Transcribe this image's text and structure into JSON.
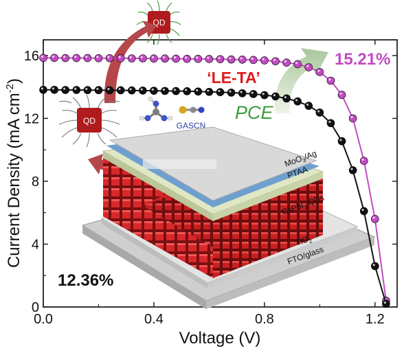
{
  "chart_data": {
    "type": "line",
    "xlabel": "Voltage (V)",
    "ylabel_prefix": "Current Density (mA cm",
    "ylabel_sup": "-2",
    "ylabel_suffix": ")",
    "xlim": [
      0.0,
      1.28
    ],
    "ylim": [
      0,
      17
    ],
    "xticks": [
      0.0,
      0.4,
      0.8,
      1.2
    ],
    "xtick_labels": [
      "0.0",
      "0.4",
      "0.8",
      "1.2"
    ],
    "yticks": [
      0,
      4,
      8,
      12,
      16
    ],
    "ytick_labels": [
      "0",
      "4",
      "8",
      "12",
      "16"
    ],
    "grid": false,
    "series": [
      {
        "color": "#c24bc2",
        "annotation": "15.21%",
        "x": [
          0.0,
          0.04,
          0.08,
          0.12,
          0.16,
          0.2,
          0.24,
          0.28,
          0.32,
          0.36,
          0.4,
          0.44,
          0.48,
          0.52,
          0.56,
          0.6,
          0.64,
          0.68,
          0.72,
          0.76,
          0.8,
          0.84,
          0.88,
          0.92,
          0.96,
          1.0,
          1.04,
          1.08,
          1.12,
          1.16,
          1.2,
          1.24
        ],
        "y": [
          15.85,
          15.85,
          15.84,
          15.84,
          15.84,
          15.83,
          15.83,
          15.83,
          15.82,
          15.82,
          15.81,
          15.81,
          15.8,
          15.79,
          15.79,
          15.78,
          15.77,
          15.75,
          15.74,
          15.72,
          15.69,
          15.64,
          15.55,
          15.45,
          15.25,
          14.95,
          14.4,
          13.5,
          12.0,
          9.3,
          5.6,
          0.4
        ]
      },
      {
        "color": "#111111",
        "annotation": "12.36%",
        "x": [
          0.0,
          0.04,
          0.08,
          0.12,
          0.16,
          0.2,
          0.24,
          0.28,
          0.32,
          0.36,
          0.4,
          0.44,
          0.48,
          0.52,
          0.56,
          0.6,
          0.64,
          0.68,
          0.72,
          0.76,
          0.8,
          0.84,
          0.88,
          0.92,
          0.96,
          1.0,
          1.04,
          1.08,
          1.12,
          1.16,
          1.2,
          1.24
        ],
        "y": [
          13.82,
          13.82,
          13.81,
          13.81,
          13.8,
          13.8,
          13.79,
          13.79,
          13.78,
          13.77,
          13.76,
          13.75,
          13.74,
          13.73,
          13.71,
          13.69,
          13.67,
          13.64,
          13.6,
          13.55,
          13.48,
          13.4,
          13.27,
          13.08,
          12.8,
          12.37,
          11.7,
          10.55,
          8.7,
          6.1,
          2.6,
          0.2
        ]
      }
    ]
  },
  "annotations": {
    "le_ta": "‘LE-TA’",
    "pce": "PCE",
    "gascn": "GASCN",
    "qd_top": "QD",
    "qd_left": "QD"
  },
  "device_layers": {
    "moo3_prefix": "MoO",
    "moo3_sub": "3",
    "moo3_suffix": "/Ag",
    "ptaa": "PTAA",
    "qds_prefix": "CsPbI",
    "qds_sub": "3",
    "qds_suffix": " QDs",
    "tio2_prefix": "TiO",
    "tio2_sub": "2",
    "fto": "FTO/glass"
  }
}
